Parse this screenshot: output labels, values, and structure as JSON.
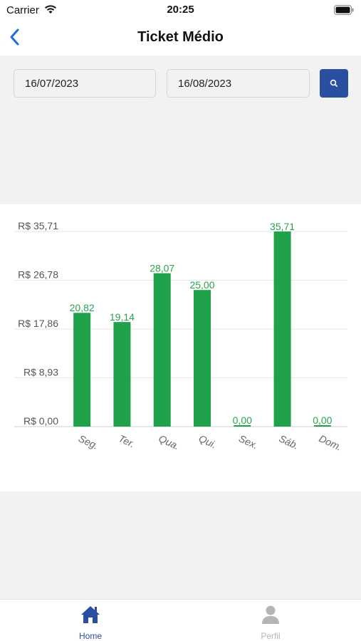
{
  "status_bar": {
    "carrier": "Carrier",
    "time": "20:25"
  },
  "header": {
    "title": "Ticket Médio"
  },
  "filters": {
    "start_date": "16/07/2023",
    "end_date": "16/08/2023"
  },
  "colors": {
    "accent": "#2a4fa0",
    "bar": "#1fa24a",
    "label": "#2aa24c"
  },
  "icons": {
    "back": "chevron-left-icon",
    "search": "search-icon",
    "home": "home-icon",
    "profile": "person-icon"
  },
  "chart_data": {
    "type": "bar",
    "categories": [
      "Seg.",
      "Ter.",
      "Qua.",
      "Qui.",
      "Sex.",
      "Sáb.",
      "Dom."
    ],
    "values": [
      20.82,
      19.14,
      28.07,
      25.0,
      0.0,
      35.71,
      0.0
    ],
    "value_labels": [
      "20,82",
      "19,14",
      "28,07",
      "25,00",
      "0,00",
      "35,71",
      "0,00"
    ],
    "y_ticks": [
      "R$ 0,00",
      "R$ 8,93",
      "R$ 17,86",
      "R$ 26,78",
      "R$ 35,71"
    ],
    "y_tick_values": [
      0,
      8.93,
      17.86,
      26.78,
      35.71
    ],
    "ylim": [
      0,
      35.71
    ],
    "grid": true,
    "legend": "none"
  },
  "tabs": [
    {
      "label": "Home",
      "active": true
    },
    {
      "label": "Perfil",
      "active": false
    }
  ]
}
